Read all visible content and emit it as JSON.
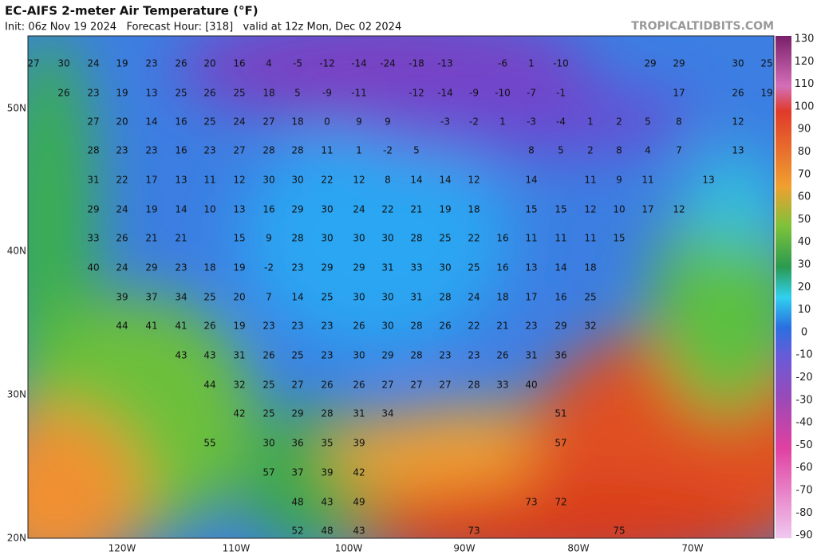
{
  "header": {
    "title": "EC-AIFS 2-meter Air Temperature (°F)",
    "subtitle": "Init: 06z Nov 19 2024   Forecast Hour: [318]   valid at 12z Mon, Dec 02 2024",
    "source": "TROPICALTIDBITS.COM"
  },
  "colorbar": {
    "ticks": [
      130,
      120,
      110,
      100,
      90,
      80,
      70,
      60,
      50,
      40,
      30,
      20,
      10,
      0,
      -10,
      -20,
      -30,
      -40,
      -50,
      -60,
      -70,
      -80,
      -90
    ]
  },
  "axes": {
    "lat": [
      "50N",
      "40N",
      "30N",
      "20N"
    ],
    "lon": [
      "120W",
      "110W",
      "100W",
      "90W",
      "80W",
      "70W"
    ]
  },
  "map": {
    "rows": [
      [
        27,
        30,
        24,
        19,
        23,
        26,
        20,
        16,
        4,
        -5,
        -12,
        -14,
        -24,
        -18,
        -13,
        -6,
        1,
        -10,
        29,
        29,
        30,
        25
      ],
      [
        26,
        23,
        19,
        13,
        25,
        26,
        25,
        18,
        5,
        -9,
        -11,
        -12,
        -14,
        -9,
        -10,
        -7,
        -1,
        17,
        26,
        19
      ],
      [
        27,
        20,
        14,
        16,
        25,
        24,
        27,
        18,
        0,
        9,
        9,
        -3,
        -2,
        1,
        -3,
        -4,
        1,
        2,
        5,
        8,
        12
      ],
      [
        28,
        23,
        23,
        16,
        23,
        27,
        28,
        28,
        11,
        1,
        -2,
        5,
        8,
        5,
        2,
        8,
        4,
        7,
        13
      ],
      [
        31,
        22,
        17,
        13,
        11,
        12,
        30,
        30,
        22,
        12,
        8,
        14,
        14,
        12,
        14,
        11,
        9,
        11,
        13
      ],
      [
        29,
        24,
        19,
        14,
        10,
        13,
        16,
        29,
        30,
        24,
        22,
        21,
        19,
        18,
        15,
        15,
        12,
        10,
        17,
        12
      ],
      [
        33,
        26,
        21,
        21,
        15,
        9,
        28,
        30,
        30,
        30,
        28,
        25,
        22,
        16,
        11,
        11,
        11,
        15
      ],
      [
        40,
        24,
        29,
        23,
        18,
        19,
        -2,
        23,
        29,
        29,
        31,
        33,
        30,
        25,
        16,
        13,
        14,
        18
      ],
      [
        39,
        37,
        34,
        25,
        20,
        7,
        14,
        25,
        30,
        30,
        31,
        28,
        24,
        18,
        17,
        16,
        25
      ],
      [
        44,
        41,
        41,
        26,
        19,
        23,
        23,
        23,
        26,
        30,
        28,
        26,
        22,
        21,
        23,
        29,
        32
      ],
      [
        43,
        43,
        31,
        26,
        25,
        23,
        30,
        29,
        28,
        23,
        23,
        26,
        31,
        36
      ],
      [
        44,
        32,
        25,
        27,
        26,
        26,
        27,
        27,
        27,
        28,
        33,
        40
      ],
      [
        42,
        25,
        29,
        28,
        31,
        34,
        51
      ],
      [
        55,
        30,
        36,
        35,
        39,
        57
      ],
      [
        57,
        37,
        39,
        42
      ],
      [
        48,
        43,
        49,
        73,
        72
      ],
      [
        52,
        48,
        43,
        73,
        75
      ]
    ]
  }
}
